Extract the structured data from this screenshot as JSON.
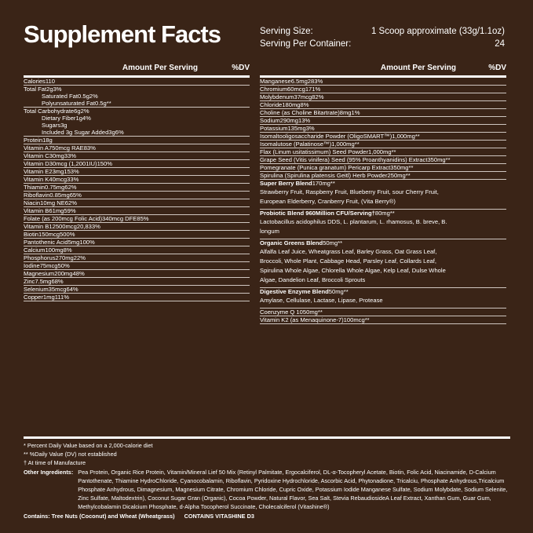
{
  "header": {
    "title": "Supplement Facts",
    "serving_size_label": "Serving Size:",
    "serving_size": "1 Scoop approximate (33g/1.1oz)",
    "servings_label": "Serving Per Container:",
    "servings": "24"
  },
  "columns": {
    "left": {
      "headers": [
        "Amount Per Serving",
        "%DV"
      ],
      "rows": [
        {
          "name": "Calories",
          "amount": "110"
        },
        {
          "name": "Total Fat",
          "amount": "2g",
          "dv": "3%",
          "sub": [
            {
              "name": "Saturated Fat",
              "amount": "0.5g",
              "dv": "2%"
            },
            {
              "name": "Polyunsaturated Fat",
              "amount": "0.5g",
              "dv": "**"
            }
          ]
        },
        {
          "name": "Total Carbohydrate",
          "amount": "6g",
          "dv": "2%",
          "sub": [
            {
              "name": "Dietary Fiber",
              "amount": "1g",
              "dv": "4%"
            },
            {
              "name": "Sugars",
              "amount": "3g"
            },
            {
              "name": "Included 3g Sugar Added",
              "amount": "3g",
              "dv": "6%"
            }
          ]
        },
        {
          "name": "Protein",
          "amount": "18g"
        },
        {
          "name": "Vitamin A",
          "amount": "750mcg RAE",
          "dv": "83%"
        },
        {
          "name": "Vitamin C",
          "amount": "30mg",
          "dv": "33%"
        },
        {
          "name": "Vitamin D",
          "amount": "30mcg (1,2001IU)",
          "dv": "150%"
        },
        {
          "name": "Vitamin E",
          "amount": "23mg",
          "dv": "153%"
        },
        {
          "name": "Vitamin K",
          "amount": "40mcg",
          "dv": "33%"
        },
        {
          "name": "Thiamin",
          "amount": "0.75mg",
          "dv": "62%"
        },
        {
          "name": "Riboflavin",
          "amount": "0.85mg",
          "dv": "65%"
        },
        {
          "name": "Niacin",
          "amount": "10mg NE",
          "dv": "62%"
        },
        {
          "name": "Vitamin B6",
          "amount": "1mg",
          "dv": "59%"
        },
        {
          "name": "Folate (as 200mcg Folic Acid)",
          "amount": "340mcg DFE",
          "dv": "85%"
        },
        {
          "name": "Vitamin B12",
          "amount": "500mcg",
          "dv": "20,833%"
        },
        {
          "name": "Biotin",
          "amount": "150mcg",
          "dv": "500%"
        },
        {
          "name": "Pantothenic Acid",
          "amount": "5mg",
          "dv": "100%"
        },
        {
          "name": "Calcium",
          "amount": "100mg",
          "dv": "8%"
        },
        {
          "name": "Phosphorus",
          "amount": "270mg",
          "dv": "22%"
        },
        {
          "name": "Iodine",
          "amount": "75mcg",
          "dv": "50%"
        },
        {
          "name": "Magnesium",
          "amount": "200mg",
          "dv": "48%"
        },
        {
          "name": "Zinc",
          "amount": "7.5mg",
          "dv": "68%"
        },
        {
          "name": "Selenium",
          "amount": "35mcg",
          "dv": "64%"
        },
        {
          "name": "Copper",
          "amount": "1mg",
          "dv": "111%"
        }
      ]
    },
    "right": {
      "headers": [
        "Amount Per Serving",
        "%DV"
      ],
      "rows": [
        {
          "name": "Manganese",
          "amount": "6.5mg",
          "dv": "283%"
        },
        {
          "name": "Chromium",
          "amount": "60mcg",
          "dv": "171%"
        },
        {
          "name": "Molybdenum",
          "amount": "37mcg",
          "dv": "82%"
        },
        {
          "name": "Chloride",
          "amount": "180mg",
          "dv": "8%"
        },
        {
          "name": "Choline (as Choline Bitartrate)",
          "amount": "8mg",
          "dv": "1%"
        },
        {
          "name": "Sodium",
          "amount": "290mg",
          "dv": "13%"
        },
        {
          "name": "Potassium",
          "amount": "135mg",
          "dv": "3%"
        },
        {
          "name": "Isomaltooligosaccharide Powder (OligoSMART™)",
          "amount": "1,000mg",
          "dv": "**"
        },
        {
          "name": "Isomalutose (Palatinose™)",
          "amount": "1,000mg",
          "dv": "**"
        },
        {
          "name": "Flax (Linum usitatissimum) Seed Powder",
          "amount": "1,000mg",
          "dv": "**"
        },
        {
          "name": "Grape Seed (Vitis vinifera) Seed (95% Proanthyanidins) Extract",
          "amount": "350mg",
          "dv": "**"
        },
        {
          "name": "Pomegranate (Punica granatum) Pericarp Extract",
          "amount": "350mg",
          "dv": "**"
        },
        {
          "name": "Spirulina (Spirulina platensis Geitl) Herb Powder",
          "amount": "250mg",
          "dv": "**"
        },
        {
          "name": "Super Berry Blend",
          "amount": "170mg",
          "dv": "**",
          "description": "Strawberry Fruit, Raspberry Fruit, Blueberry Fruit, sour Cherry Fruit, European Elderberry, Cranberry Fruit, (Vita Berry®)"
        },
        {
          "name": "Probiotic Blend 960Million CFU/Serving†",
          "amount": "80mg",
          "dv": "**",
          "description": "Lactobacillus acidophilus DDS, L. plantarum, L. rhamosus, B. breve, B. longum"
        },
        {
          "name": "Organic Greens Blend",
          "amount": "50mg",
          "dv": "**",
          "description": "Alfalfa Leaf Juice, Wheatgrass Leaf, Barley Grass, Oat Grass Leaf, Broccoli, Whole Plant, Cabbage Head, Parsley Leaf, Collards Leaf, Spirulina Whole Algae, Chlorella Whole Algae, Kelp Leaf, Dulse Whole Algae, Dandelion Leaf, Broccoli Sprouts"
        },
        {
          "name": "Digestive Enzyme Blend",
          "amount": "50mg",
          "dv": "**",
          "description": "Amylase, Cellulase, Lactase, Lipase, Protease"
        },
        {
          "name": "Coenzyme Q 10",
          "amount": "50mg",
          "dv": "**"
        },
        {
          "name": "Vitamin K2 (as Menaquinone-7)",
          "amount": "100mcg",
          "dv": "**"
        }
      ]
    }
  },
  "footer": {
    "notes": [
      "* Percent Daily Value based on a 2,000-calorie diet",
      "** %Daily Value (DV) not established",
      "† At time of Manufacture"
    ],
    "other_ingredients_label": "Other Ingredients:",
    "other_ingredients": "Pea Protein, Organic Rice Protein, Vitamin/Mineral Lief 50 Mix (Retinyl Palmitate, Ergocalciferol, DL-α-Tocopheryl Acetate, Biotin, Folic Acid, Niacinamide, D-Calcium Pantothenate, Thiamine HydroChloride, Cyanocobalamin, Riboflavin, Pyridoxine Hydrochloride, Ascorbic Acid, Phytonadione, Tricalciu, Phosphate Anhydrous,Tricalcium Phosphate Anhydrous, Dimagnesium, Magnesium Citrate, Chromium Chloride, Cupric Oxide, Potassium Iodide Manganese Sulfate, Sodium Molybdate, Sodium Selenite, Zinc Sulfate, Maltodextrin), Coconut Sugar Gran (Organic), Cocoa Powder, Natural Flavor, Sea Salt, Stevia RebaudiosideA Leaf Extract, Xanthan Gum, Guar Gum, Methylcobalamin Dicalcium Phosphate, d-Alpha Tocopherol Succinate, Cholecalciferol (Vitashine®)",
    "contains": "Contains: Tree Nuts (Coconut) and Wheat (Wheatgrass)",
    "vitashine": "CONTAINS VITASHINE D3"
  }
}
